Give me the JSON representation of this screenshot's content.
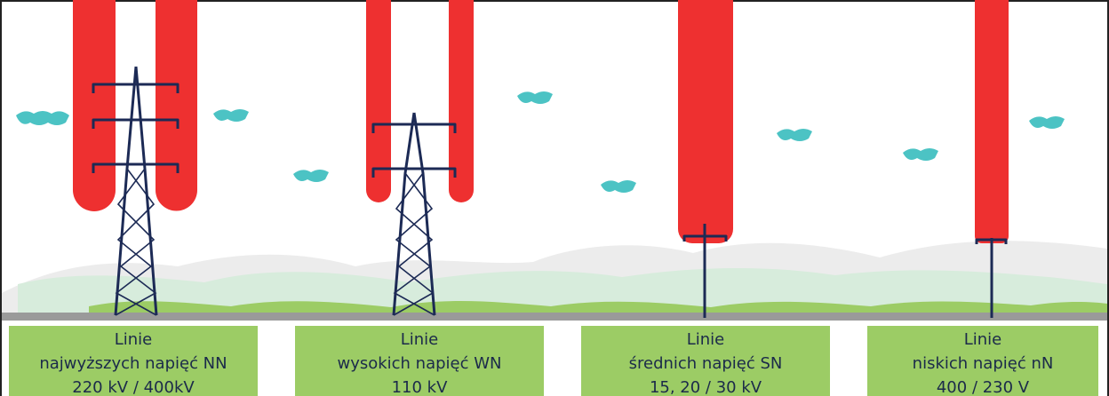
{
  "panels": [
    {
      "lines": [
        "Linie",
        "najwyższych napięć NN",
        "220 kV / 400kV"
      ]
    },
    {
      "lines": [
        "Linie",
        "wysokich napięć WN",
        "110 kV"
      ]
    },
    {
      "lines": [
        "Linie",
        "średnich napięć SN",
        "15, 20 / 30 kV"
      ]
    },
    {
      "lines": [
        "Linie",
        "niskich napięć nN",
        "400 / 230 V"
      ]
    }
  ]
}
